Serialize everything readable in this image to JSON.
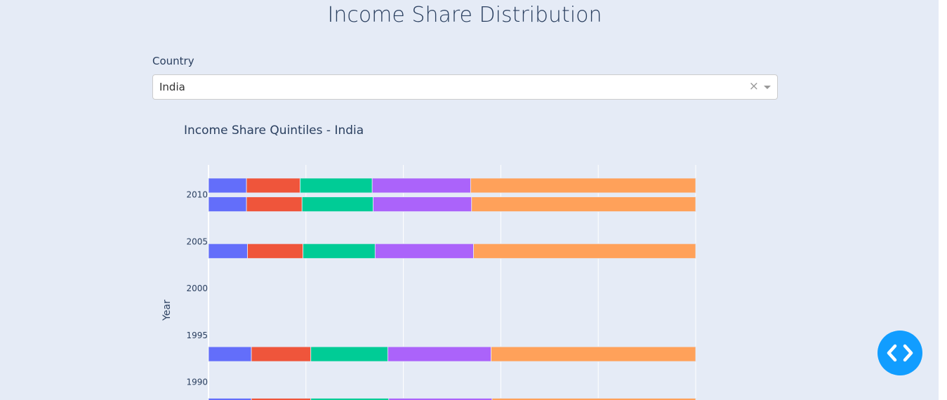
{
  "page": {
    "title": "Income Share Distribution"
  },
  "filter": {
    "label": "Country",
    "selected": "India",
    "clear_symbol": "×"
  },
  "chart_data": {
    "type": "bar",
    "orientation": "horizontal",
    "barmode": "stack",
    "title": "Income Share Quintiles - India",
    "xlabel": "",
    "ylabel": "Year",
    "xlim": [
      0,
      50
    ],
    "ytick_labels": [
      "2010",
      "2005",
      "2000",
      "1995",
      "1990"
    ],
    "ytick_values": [
      2010,
      2005,
      2000,
      1995,
      1990
    ],
    "ylim_visible": [
      1988.1,
      2013.2
    ],
    "grid": true,
    "legend": "none visible",
    "colors": [
      "#636efa",
      "#ef553b",
      "#00cc96",
      "#ab63fa",
      "#ffa15a"
    ],
    "bars": [
      {
        "year": 2011.0,
        "segments": [
          3.9,
          5.5,
          7.4,
          10.1,
          23.1
        ]
      },
      {
        "year": 2009.0,
        "segments": [
          3.9,
          5.7,
          7.3,
          10.1,
          23.0
        ]
      },
      {
        "year": 2004.0,
        "segments": [
          4.0,
          5.7,
          7.4,
          10.1,
          22.8
        ]
      },
      {
        "year": 1993.0,
        "segments": [
          4.4,
          6.1,
          7.9,
          10.6,
          21.0
        ]
      },
      {
        "year": 1987.5,
        "segments": [
          4.4,
          6.1,
          8.0,
          10.6,
          20.9
        ]
      }
    ]
  },
  "fab": {
    "icon": "code-brackets-icon",
    "color": "#119dff"
  }
}
